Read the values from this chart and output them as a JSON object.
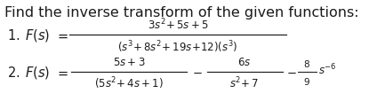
{
  "title": "Find the inverse transform of the given functions:",
  "background_color": "#ffffff",
  "text_color": "#1a1a1a",
  "fig_width": 4.33,
  "fig_height": 1.15,
  "dpi": 100,
  "title_fontsize": 11.5,
  "label_fontsize": 10.5,
  "math_fontsize": 8.5,
  "small_fontsize": 7.5
}
